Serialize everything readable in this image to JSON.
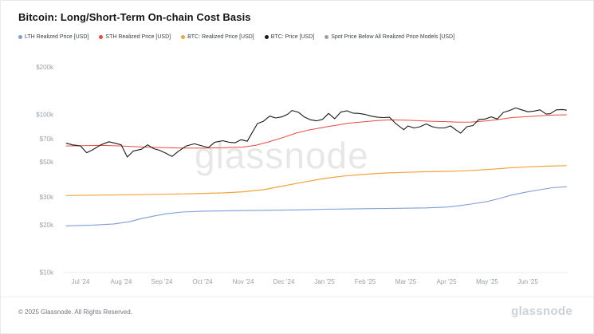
{
  "title": "Bitcoin: Long/Short-Term On-chain Cost Basis",
  "watermark": "glassnode",
  "footer": {
    "copyright": "© 2025 Glassnode. All Rights Reserved.",
    "brand": "glassnode"
  },
  "legend": [
    {
      "label": "LTH Realized Price [USD]",
      "color": "#7d9ed9"
    },
    {
      "label": "STH Realized Price [USD]",
      "color": "#e8483f"
    },
    {
      "label": "BTC: Realized Price [USD]",
      "color": "#f2a33c"
    },
    {
      "label": "BTC: Price [USD]",
      "color": "#1a1a1a"
    },
    {
      "label": "Spot Price Below All Realized Price Models [USD]",
      "color": "#9aa0a6"
    }
  ],
  "chart_data": {
    "type": "line",
    "title": "Bitcoin: Long/Short-Term On-chain Cost Basis",
    "grid": "off",
    "legend_position": "top",
    "x_axis": {
      "unit": "months since Jul 2024",
      "tick_labels": [
        "Jul '24",
        "Aug '24",
        "Sep '24",
        "Oct '24",
        "Nov '24",
        "Dec '24",
        "Jan '25",
        "Feb '25",
        "Mar '25",
        "Apr '25",
        "May '25",
        "Jun '25"
      ]
    },
    "y_axis": {
      "scale": "log",
      "unit": "USD (values in thousands)",
      "range_k": [
        10,
        200
      ],
      "ticks": [
        {
          "value": 200,
          "label": "$200k"
        },
        {
          "value": 100,
          "label": "$100k"
        },
        {
          "value": 70,
          "label": "$70k"
        },
        {
          "value": 50,
          "label": "$50k"
        },
        {
          "value": 30,
          "label": "$30k"
        },
        {
          "value": 20,
          "label": "$20k"
        },
        {
          "value": 10,
          "label": "$10k"
        }
      ]
    },
    "series": [
      {
        "name": "LTH Realized Price [USD]",
        "color": "#7d9ed9",
        "width": 1.1,
        "points": [
          [
            -0.35,
            19.8
          ],
          [
            0.3,
            20
          ],
          [
            0.8,
            20.3
          ],
          [
            1.2,
            21
          ],
          [
            1.5,
            22
          ],
          [
            1.8,
            22.8
          ],
          [
            2.1,
            23.6
          ],
          [
            2.5,
            24.2
          ],
          [
            3.0,
            24.5
          ],
          [
            3.5,
            24.6
          ],
          [
            4.0,
            24.7
          ],
          [
            4.5,
            24.8
          ],
          [
            5.0,
            24.9
          ],
          [
            5.5,
            25
          ],
          [
            6.0,
            25.2
          ],
          [
            6.5,
            25.3
          ],
          [
            7.0,
            25.4
          ],
          [
            7.5,
            25.5
          ],
          [
            8.0,
            25.6
          ],
          [
            8.5,
            25.7
          ],
          [
            9.0,
            26
          ],
          [
            9.3,
            26.5
          ],
          [
            9.6,
            27.2
          ],
          [
            10.0,
            28.2
          ],
          [
            10.3,
            29.5
          ],
          [
            10.6,
            31
          ],
          [
            11.0,
            32.5
          ],
          [
            11.3,
            33.5
          ],
          [
            11.6,
            34.5
          ],
          [
            11.95,
            35
          ]
        ]
      },
      {
        "name": "BTC: Realized Price [USD]",
        "color": "#f2a33c",
        "width": 1.2,
        "points": [
          [
            -0.35,
            30.8
          ],
          [
            0.5,
            31
          ],
          [
            1.5,
            31.2
          ],
          [
            2.5,
            31.5
          ],
          [
            3.5,
            32
          ],
          [
            4.0,
            32.5
          ],
          [
            4.5,
            33.5
          ],
          [
            5.0,
            35.5
          ],
          [
            5.5,
            37.5
          ],
          [
            6.0,
            39.5
          ],
          [
            6.5,
            41
          ],
          [
            7.0,
            42
          ],
          [
            7.5,
            42.8
          ],
          [
            8.0,
            43.2
          ],
          [
            8.5,
            43.6
          ],
          [
            9.0,
            43.8
          ],
          [
            9.5,
            44.2
          ],
          [
            10.0,
            45
          ],
          [
            10.5,
            46
          ],
          [
            11.0,
            46.8
          ],
          [
            11.5,
            47.3
          ],
          [
            11.95,
            47.6
          ]
        ]
      },
      {
        "name": "STH Realized Price [USD]",
        "color": "#e8483f",
        "width": 1.0,
        "points": [
          [
            -0.35,
            63.5
          ],
          [
            0.5,
            64
          ],
          [
            1.0,
            63.5
          ],
          [
            1.5,
            62.5
          ],
          [
            2.0,
            62
          ],
          [
            2.5,
            61.5
          ],
          [
            3.0,
            61.5
          ],
          [
            3.5,
            61.8
          ],
          [
            4.0,
            62.5
          ],
          [
            4.3,
            64
          ],
          [
            4.6,
            67
          ],
          [
            5.0,
            72
          ],
          [
            5.3,
            76.5
          ],
          [
            5.6,
            80
          ],
          [
            6.0,
            83.5
          ],
          [
            6.3,
            86
          ],
          [
            6.6,
            88.5
          ],
          [
            7.0,
            90.5
          ],
          [
            7.3,
            92
          ],
          [
            7.6,
            92.8
          ],
          [
            8.0,
            92.5
          ],
          [
            8.3,
            91.8
          ],
          [
            8.6,
            91
          ],
          [
            9.0,
            90.5
          ],
          [
            9.3,
            89.8
          ],
          [
            9.6,
            90
          ],
          [
            10.0,
            91.5
          ],
          [
            10.3,
            93.5
          ],
          [
            10.6,
            96
          ],
          [
            11.0,
            97.5
          ],
          [
            11.3,
            98.5
          ],
          [
            11.6,
            99.5
          ],
          [
            11.95,
            100
          ]
        ]
      },
      {
        "name": "BTC: Price [USD]",
        "color": "#1a1a1a",
        "width": 1.1,
        "points": [
          [
            -0.35,
            66
          ],
          [
            -0.2,
            64.5
          ],
          [
            0,
            63.5
          ],
          [
            0.15,
            57.5
          ],
          [
            0.3,
            60
          ],
          [
            0.5,
            64.5
          ],
          [
            0.7,
            67.5
          ],
          [
            0.85,
            66
          ],
          [
            1.0,
            64.5
          ],
          [
            1.15,
            54
          ],
          [
            1.3,
            59
          ],
          [
            1.5,
            60.5
          ],
          [
            1.65,
            64.5
          ],
          [
            1.8,
            61
          ],
          [
            1.95,
            59.5
          ],
          [
            2.1,
            57
          ],
          [
            2.25,
            54.5
          ],
          [
            2.4,
            58.5
          ],
          [
            2.6,
            63.5
          ],
          [
            2.8,
            65.5
          ],
          [
            3.0,
            63.5
          ],
          [
            3.15,
            62
          ],
          [
            3.3,
            67
          ],
          [
            3.5,
            68.5
          ],
          [
            3.65,
            67
          ],
          [
            3.8,
            66.5
          ],
          [
            3.95,
            69.5
          ],
          [
            4.1,
            68
          ],
          [
            4.2,
            75.5
          ],
          [
            4.35,
            88
          ],
          [
            4.5,
            91
          ],
          [
            4.65,
            98
          ],
          [
            4.8,
            95.5
          ],
          [
            4.95,
            97
          ],
          [
            5.1,
            101
          ],
          [
            5.2,
            106.5
          ],
          [
            5.35,
            104
          ],
          [
            5.5,
            97
          ],
          [
            5.65,
            93
          ],
          [
            5.8,
            91.5
          ],
          [
            5.95,
            93.5
          ],
          [
            6.1,
            102
          ],
          [
            6.25,
            94.5
          ],
          [
            6.4,
            104
          ],
          [
            6.55,
            106
          ],
          [
            6.7,
            102.5
          ],
          [
            6.85,
            102
          ],
          [
            7.0,
            100.5
          ],
          [
            7.15,
            98
          ],
          [
            7.3,
            96.5
          ],
          [
            7.45,
            96
          ],
          [
            7.6,
            96.5
          ],
          [
            7.75,
            88
          ],
          [
            7.95,
            80.5
          ],
          [
            8.05,
            85
          ],
          [
            8.2,
            82.5
          ],
          [
            8.35,
            84
          ],
          [
            8.5,
            87.5
          ],
          [
            8.65,
            84
          ],
          [
            8.8,
            82.5
          ],
          [
            8.95,
            82.5
          ],
          [
            9.1,
            85
          ],
          [
            9.25,
            79.5
          ],
          [
            9.35,
            76.5
          ],
          [
            9.5,
            84
          ],
          [
            9.65,
            85.5
          ],
          [
            9.8,
            93.5
          ],
          [
            9.95,
            94
          ],
          [
            10.1,
            97
          ],
          [
            10.25,
            94
          ],
          [
            10.4,
            103.5
          ],
          [
            10.55,
            106.5
          ],
          [
            10.7,
            110.5
          ],
          [
            10.85,
            107.5
          ],
          [
            11.0,
            104.5
          ],
          [
            11.15,
            105.5
          ],
          [
            11.3,
            107.5
          ],
          [
            11.45,
            101
          ],
          [
            11.55,
            101.5
          ],
          [
            11.7,
            107.5
          ],
          [
            11.85,
            108
          ],
          [
            11.95,
            107
          ]
        ]
      }
    ]
  }
}
